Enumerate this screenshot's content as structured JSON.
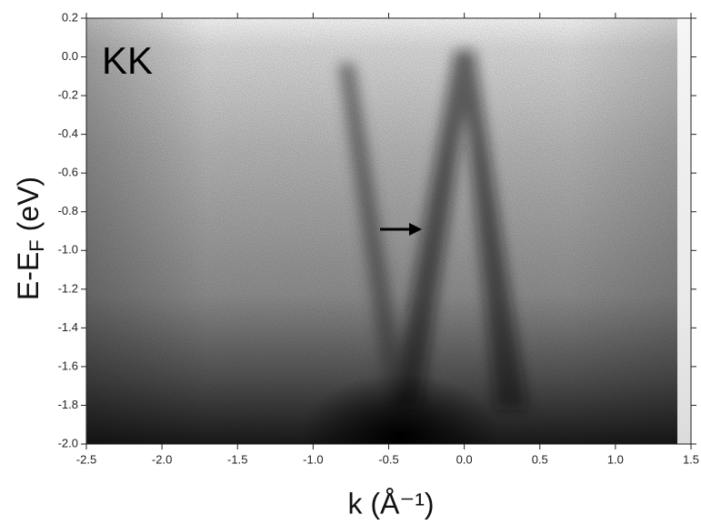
{
  "chart_data": {
    "type": "intensity-map",
    "annotation": "KK",
    "xlabel": "k (Å⁻¹)",
    "ylabel": [
      "E-E",
      "F",
      " (eV)"
    ],
    "xlim": [
      -2.5,
      1.5
    ],
    "ylim": [
      -2.0,
      0.2
    ],
    "xticks": [
      -2.5,
      {
        "value": -2,
        "label": "-2.0"
      },
      -1.5,
      {
        "value": -1,
        "label": "-1.0"
      },
      -0.5,
      {
        "value": 0,
        "label": "0.0"
      },
      0.5,
      {
        "value": 1,
        "label": "1.0"
      },
      1.5
    ],
    "yticks": [
      0.2,
      {
        "value": 0,
        "label": "0.0"
      },
      -0.2,
      -0.4,
      -0.6,
      -0.8,
      {
        "value": -1,
        "label": "-1.0"
      },
      -1.2,
      -1.4,
      -1.6,
      -1.8,
      {
        "value": -2,
        "label": "-2.0"
      }
    ]
  }
}
